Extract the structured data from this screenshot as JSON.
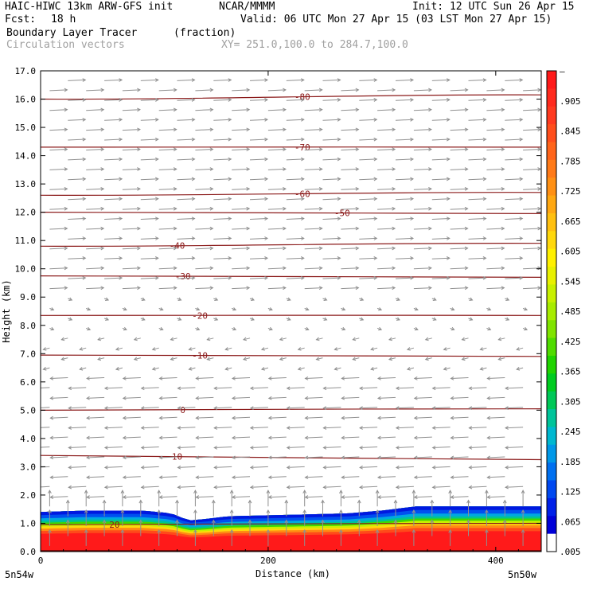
{
  "header": {
    "model": "HAIC-HIWC 13km ARW-GFS init",
    "org": "NCAR/MMMM",
    "init": "Init: 12 UTC Sun 26 Apr 15",
    "fcst_label": "Fcst:",
    "fcst_value": "18 h",
    "valid": "Valid: 06 UTC Mon 27 Apr 15 (03 LST Mon 27 Apr 15)",
    "field": "Boundary Layer Tracer",
    "field_units": "(fraction)",
    "vectors": "Circulation vectors",
    "xy_range": "XY= 251.0,100.0 to 284.7,100.0"
  },
  "colors": {
    "contour": "#8b1a1a",
    "vector": "#909090",
    "axis": "#000000"
  },
  "chart_data": {
    "type": "heatmap",
    "xlabel": "Distance (km)",
    "ylabel": "Height (km)",
    "xlim": [
      0,
      440
    ],
    "ylim": [
      0.0,
      17.0
    ],
    "x_ticks": [
      "0",
      "200",
      "400"
    ],
    "x_tick_values": [
      0,
      200,
      400
    ],
    "x_endpoints": [
      "5n54w",
      "5n50w"
    ],
    "y_ticks": [
      "0.0",
      "1.0",
      "2.0",
      "3.0",
      "4.0",
      "5.0",
      "6.0",
      "7.0",
      "8.0",
      "9.0",
      "10.0",
      "11.0",
      "12.0",
      "13.0",
      "14.0",
      "15.0",
      "16.0",
      "17.0"
    ],
    "colorbar": {
      "labels": [
        "–",
        ".905",
        ".845",
        ".785",
        ".725",
        ".665",
        ".605",
        ".545",
        ".485",
        ".425",
        ".365",
        ".305",
        ".245",
        ".185",
        ".125",
        ".065",
        ".005"
      ],
      "colors": [
        "#ff1a1a",
        "#ff2a1e",
        "#ff3a20",
        "#ff4e1c",
        "#ff641a",
        "#ff7a18",
        "#ff9014",
        "#ffa812",
        "#ffc010",
        "#ffd80c",
        "#fff000",
        "#e8f000",
        "#c8f000",
        "#a8ec00",
        "#80e400",
        "#50dc00",
        "#20d400",
        "#00cc20",
        "#00c858",
        "#00c49a",
        "#00b8d0",
        "#0098e8",
        "#0070f0",
        "#0048f0",
        "#0020e8",
        "#0000d8",
        "#ffffff"
      ]
    },
    "tracer_top_km": [
      [
        0,
        1.4
      ],
      [
        40,
        1.45
      ],
      [
        90,
        1.45
      ],
      [
        115,
        1.35
      ],
      [
        130,
        1.1
      ],
      [
        145,
        1.15
      ],
      [
        165,
        1.25
      ],
      [
        220,
        1.3
      ],
      [
        270,
        1.35
      ],
      [
        300,
        1.45
      ],
      [
        330,
        1.6
      ],
      [
        440,
        1.6
      ]
    ],
    "temperature_contours": [
      {
        "label": "-80",
        "y_left": 16.0,
        "y_right": 16.15,
        "label_x": 230
      },
      {
        "label": "-70",
        "y_left": 14.3,
        "y_right": 14.3,
        "label_x": 230
      },
      {
        "label": "-60",
        "y_left": 12.6,
        "y_right": 12.7,
        "label_x": 230
      },
      {
        "label": "-50",
        "y_left": 12.0,
        "y_right": 11.95,
        "label_x": 265
      },
      {
        "label": "-40",
        "y_left": 10.8,
        "y_right": 10.9,
        "label_x": 120
      },
      {
        "label": "-30",
        "y_left": 9.75,
        "y_right": 9.7,
        "label_x": 125
      },
      {
        "label": "-20",
        "y_left": 8.35,
        "y_right": 8.35,
        "label_x": 140
      },
      {
        "label": "-10",
        "y_left": 6.95,
        "y_right": 6.9,
        "label_x": 140
      },
      {
        "label": "0",
        "y_left": 5.0,
        "y_right": 5.05,
        "label_x": 125
      },
      {
        "label": "10",
        "y_left": 3.4,
        "y_right": 3.25,
        "label_x": 120
      },
      {
        "label": "20",
        "y_left": 0.95,
        "y_right": 1.0,
        "label_x": 65
      }
    ],
    "wind_direction_by_height": [
      {
        "z_min": 9.2,
        "z_max": 17.0,
        "direction": "east",
        "speed": "strong"
      },
      {
        "z_min": 6.5,
        "z_max": 9.2,
        "direction": "variable",
        "speed": "weak"
      },
      {
        "z_min": 1.6,
        "z_max": 6.5,
        "direction": "west",
        "speed": "strong"
      },
      {
        "z_min": 0.0,
        "z_max": 1.6,
        "direction": "vertical",
        "speed": "weak"
      }
    ]
  }
}
